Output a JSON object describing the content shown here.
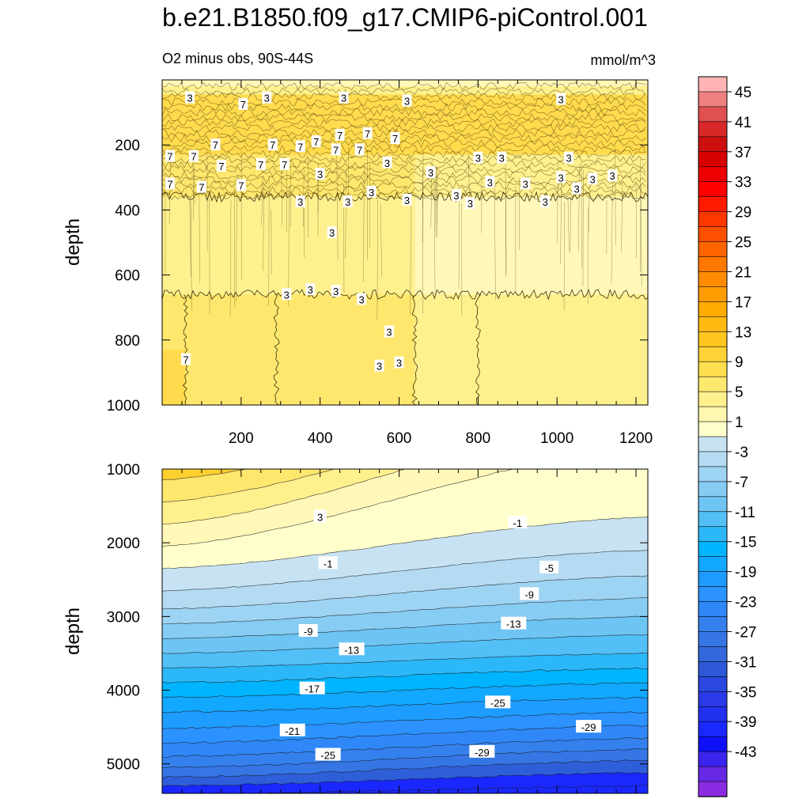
{
  "figure": {
    "title": "b.e21.B1850.f09_g17.CMIP6-piControl.001",
    "subtitle": "O2 minus obs, 90S-44S",
    "units": "mmol/m^3"
  },
  "chart_data": [
    {
      "type": "heatmap",
      "panel": "upper",
      "title": "O2 minus obs, 90S-44S",
      "xlabel": "",
      "ylabel": "depth",
      "xlim": [
        0,
        1230
      ],
      "ylim": [
        1000,
        0
      ],
      "x_ticks": [
        200,
        400,
        600,
        800,
        1000,
        1200
      ],
      "y_ticks": [
        200,
        400,
        600,
        800,
        1000
      ],
      "value_bands": [
        {
          "x0": 0,
          "x1": 1230,
          "y0": 20,
          "y1": 45,
          "value": 3
        },
        {
          "x0": 0,
          "x1": 1230,
          "y0": 45,
          "y1": 230,
          "value": 7
        },
        {
          "x0": 0,
          "x1": 640,
          "y0": 230,
          "y1": 360,
          "value": 6
        },
        {
          "x0": 640,
          "x1": 1230,
          "y0": 230,
          "y1": 360,
          "value": 4
        },
        {
          "x0": 0,
          "x1": 640,
          "y0": 360,
          "y1": 660,
          "value": 4
        },
        {
          "x0": 640,
          "x1": 1230,
          "y0": 360,
          "y1": 660,
          "value": 2
        },
        {
          "x0": 0,
          "x1": 290,
          "y0": 660,
          "y1": 1000,
          "value": 6
        },
        {
          "x0": 290,
          "x1": 640,
          "y0": 660,
          "y1": 1000,
          "value": 5
        },
        {
          "x0": 640,
          "x1": 800,
          "y0": 660,
          "y1": 1000,
          "value": 4
        },
        {
          "x0": 800,
          "x1": 1230,
          "y0": 660,
          "y1": 1000,
          "value": 3
        },
        {
          "x0": 0,
          "x1": 60,
          "y0": 830,
          "y1": 1000,
          "value": 8
        }
      ],
      "contour_labels": [
        {
          "text": "3",
          "x": 70,
          "y": 55
        },
        {
          "text": "7",
          "x": 205,
          "y": 75
        },
        {
          "text": "3",
          "x": 265,
          "y": 55
        },
        {
          "text": "3",
          "x": 460,
          "y": 55
        },
        {
          "text": "3",
          "x": 620,
          "y": 65
        },
        {
          "text": "3",
          "x": 1010,
          "y": 60
        },
        {
          "text": "7",
          "x": 390,
          "y": 190
        },
        {
          "text": "7",
          "x": 450,
          "y": 170
        },
        {
          "text": "7",
          "x": 520,
          "y": 165
        },
        {
          "text": "7",
          "x": 590,
          "y": 180
        },
        {
          "text": "7",
          "x": 135,
          "y": 200
        },
        {
          "text": "7",
          "x": 280,
          "y": 200
        },
        {
          "text": "7",
          "x": 350,
          "y": 205
        },
        {
          "text": "7",
          "x": 440,
          "y": 215
        },
        {
          "text": "7",
          "x": 500,
          "y": 215
        },
        {
          "text": "7",
          "x": 20,
          "y": 235
        },
        {
          "text": "7",
          "x": 80,
          "y": 235
        },
        {
          "text": "7",
          "x": 150,
          "y": 265
        },
        {
          "text": "7",
          "x": 250,
          "y": 260
        },
        {
          "text": "7",
          "x": 310,
          "y": 260
        },
        {
          "text": "3",
          "x": 570,
          "y": 255
        },
        {
          "text": "3",
          "x": 800,
          "y": 240
        },
        {
          "text": "3",
          "x": 860,
          "y": 240
        },
        {
          "text": "3",
          "x": 1030,
          "y": 240
        },
        {
          "text": "3",
          "x": 400,
          "y": 290
        },
        {
          "text": "3",
          "x": 680,
          "y": 285
        },
        {
          "text": "7",
          "x": 20,
          "y": 320
        },
        {
          "text": "7",
          "x": 100,
          "y": 330
        },
        {
          "text": "7",
          "x": 200,
          "y": 325
        },
        {
          "text": "3",
          "x": 830,
          "y": 315
        },
        {
          "text": "3",
          "x": 920,
          "y": 320
        },
        {
          "text": "3",
          "x": 1010,
          "y": 300
        },
        {
          "text": "3",
          "x": 1090,
          "y": 305
        },
        {
          "text": "3",
          "x": 1140,
          "y": 295
        },
        {
          "text": "3",
          "x": 530,
          "y": 345
        },
        {
          "text": "3",
          "x": 745,
          "y": 355
        },
        {
          "text": "3",
          "x": 1050,
          "y": 335
        },
        {
          "text": "3",
          "x": 350,
          "y": 375
        },
        {
          "text": "3",
          "x": 470,
          "y": 375
        },
        {
          "text": "3",
          "x": 620,
          "y": 370
        },
        {
          "text": "3",
          "x": 780,
          "y": 380
        },
        {
          "text": "3",
          "x": 970,
          "y": 375
        },
        {
          "text": "3",
          "x": 430,
          "y": 470
        },
        {
          "text": "3",
          "x": 375,
          "y": 645
        },
        {
          "text": "3",
          "x": 315,
          "y": 660
        },
        {
          "text": "3",
          "x": 440,
          "y": 650
        },
        {
          "text": "3",
          "x": 505,
          "y": 675
        },
        {
          "text": "3",
          "x": 575,
          "y": 775
        },
        {
          "text": "3",
          "x": 600,
          "y": 870
        },
        {
          "text": "3",
          "x": 550,
          "y": 880
        },
        {
          "text": "7",
          "x": 60,
          "y": 860
        }
      ]
    },
    {
      "type": "heatmap",
      "panel": "lower",
      "xlabel": "",
      "ylabel": "depth",
      "xlim": [
        0,
        1230
      ],
      "ylim": [
        1000,
        5400
      ],
      "x_ticks": [
        200,
        400,
        600,
        800,
        1000,
        1200
      ],
      "y_ticks": [
        1000,
        2000,
        3000,
        4000,
        5000
      ],
      "contour_levels": [
        7,
        5,
        3,
        1,
        -1,
        -3,
        -5,
        -7,
        -9,
        -11,
        -13,
        -15,
        -17,
        -19,
        -21,
        -23,
        -25,
        -27,
        -29,
        -31,
        -33
      ],
      "contour_depth_at_x0": [
        1150,
        1450,
        1750,
        2050,
        2350,
        2650,
        2900,
        3100,
        3300,
        3500,
        3700,
        3900,
        4100,
        4300,
        4520,
        4720,
        4900,
        5050,
        5180,
        5300,
        5420
      ],
      "contour_depth_at_x1230": [
        -200,
        0,
        250,
        700,
        1650,
        2100,
        2450,
        2750,
        3000,
        3250,
        3500,
        3700,
        3900,
        4100,
        4300,
        4480,
        4650,
        4800,
        4950,
        5120,
        5300
      ],
      "contour_labels": [
        {
          "text": "3",
          "x": 400,
          "y": 1650
        },
        {
          "text": "-1",
          "x": 900,
          "y": 1730
        },
        {
          "text": "-1",
          "x": 420,
          "y": 2280
        },
        {
          "text": "-5",
          "x": 980,
          "y": 2340
        },
        {
          "text": "-9",
          "x": 930,
          "y": 2700
        },
        {
          "text": "-13",
          "x": 890,
          "y": 3100
        },
        {
          "text": "-9",
          "x": 370,
          "y": 3200
        },
        {
          "text": "-13",
          "x": 480,
          "y": 3450
        },
        {
          "text": "-17",
          "x": 380,
          "y": 3980
        },
        {
          "text": "-25",
          "x": 850,
          "y": 4170
        },
        {
          "text": "-21",
          "x": 330,
          "y": 4550
        },
        {
          "text": "-29",
          "x": 1080,
          "y": 4500
        },
        {
          "text": "-25",
          "x": 420,
          "y": 4880
        },
        {
          "text": "-29",
          "x": 810,
          "y": 4840
        }
      ]
    }
  ],
  "colorbar": {
    "labels": [
      "45",
      "41",
      "37",
      "33",
      "29",
      "25",
      "21",
      "17",
      "13",
      "9",
      "5",
      "1",
      "-3",
      "-7",
      "-11",
      "-15",
      "-19",
      "-23",
      "-27",
      "-31",
      "-35",
      "-39",
      "-43"
    ],
    "colors": [
      "#ffb4b4",
      "#ee8080",
      "#e05050",
      "#d82828",
      "#cc1010",
      "#d80000",
      "#ee0000",
      "#ff0000",
      "#ff1a00",
      "#ff3800",
      "#ff4f00",
      "#ff6400",
      "#ff7800",
      "#ff8c00",
      "#ff9c00",
      "#ffab00",
      "#ffb90f",
      "#ffc61f",
      "#ffd335",
      "#ffdf4f",
      "#ffe86e",
      "#fff08e",
      "#fff7b0",
      "#ffffcc",
      "#c7e3f3",
      "#b4dbf2",
      "#9ed4f3",
      "#87ccf3",
      "#6ec5f4",
      "#52bff6",
      "#2cb8f8",
      "#00b4ff",
      "#12a8ff",
      "#1e9cff",
      "#2b92ff",
      "#3088f8",
      "#3481ee",
      "#3576e4",
      "#3268dc",
      "#2e58d8",
      "#2a48e0",
      "#2a3ae8",
      "#2230f0",
      "#1a28ff",
      "#0f10f8",
      "#3a24ee",
      "#6628e4",
      "#8a2be2"
    ]
  }
}
